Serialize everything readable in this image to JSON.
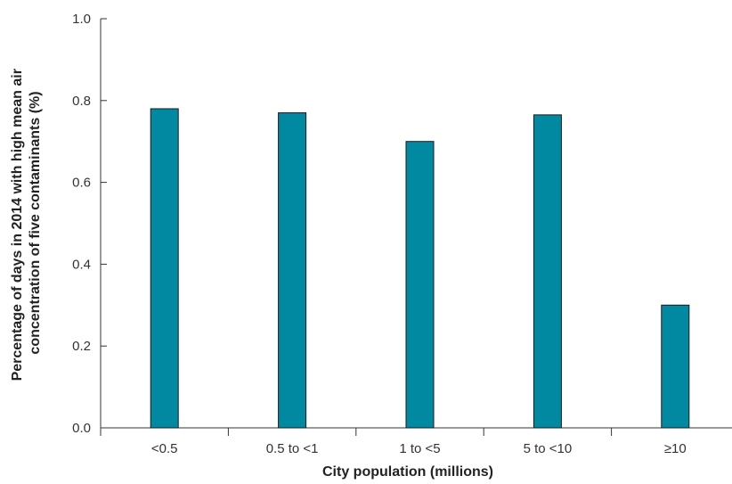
{
  "chart_data": {
    "type": "bar",
    "categories": [
      "<0.5",
      "0.5 to <1",
      "1 to <5",
      "5 to <10",
      "≥10"
    ],
    "values": [
      0.78,
      0.77,
      0.7,
      0.765,
      0.3
    ],
    "xlabel": "City population (millions)",
    "ylabel_lines": [
      "Percentage of days in 2014 with high mean air",
      "concentration of five contaminants (%)"
    ],
    "ylim": [
      0,
      1.0
    ],
    "yticks": [
      "0.0",
      "0.2",
      "0.4",
      "0.6",
      "0.8",
      "1.0"
    ],
    "bar_color": "#0089a0",
    "grid": false,
    "legend": "none"
  }
}
